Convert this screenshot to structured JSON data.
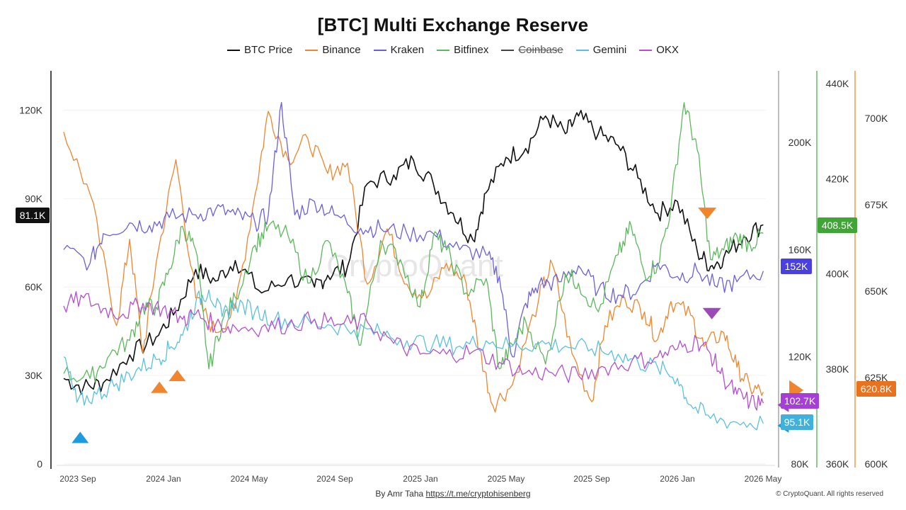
{
  "chart_data": {
    "type": "line",
    "title": "[BTC] Multi Exchange Reserve",
    "watermark": "CryptoQuant",
    "x_ticks": [
      "2023 Sep",
      "2024 Jan",
      "2024 May",
      "2024 Sep",
      "2025 Jan",
      "2025 May",
      "2025 Sep",
      "2026 Jan",
      "2026 May"
    ],
    "axes": {
      "price": {
        "ticks": [
          "0",
          "30K",
          "60K",
          "90K",
          "120K"
        ],
        "range": [
          0,
          129000
        ],
        "current_label": "81.1K",
        "color": "#111111"
      },
      "kraken": {
        "ticks": [
          "80K",
          "120K",
          "160K",
          "200K"
        ],
        "range": [
          80000,
          222000
        ],
        "color": "#999999"
      },
      "bitfinex": {
        "ticks": [
          "360K",
          "380K",
          "400K",
          "420K",
          "440K"
        ],
        "range": [
          360000,
          440000
        ],
        "current_label": "408.5K",
        "color": "#4caf50"
      },
      "binance": {
        "ticks": [
          "600K",
          "625K",
          "650K",
          "675K",
          "700K"
        ],
        "range": [
          600000,
          710000
        ],
        "current_label": "620.8K",
        "color": "#f0852d"
      }
    },
    "side_labels": [
      {
        "text": "152K",
        "color": "#4a3fe0"
      },
      {
        "text": "102.7K",
        "color": "#a53fd8"
      },
      {
        "text": "95.1K",
        "color": "#3fb1dc"
      }
    ],
    "series": [
      {
        "name": "BTC Price",
        "color": "#111111",
        "visible": true,
        "axis": "price",
        "points": [
          [
            0,
            29000
          ],
          [
            0.03,
            26000
          ],
          [
            0.06,
            27500
          ],
          [
            0.1,
            37000
          ],
          [
            0.14,
            43000
          ],
          [
            0.17,
            52000
          ],
          [
            0.2,
            66000
          ],
          [
            0.23,
            62000
          ],
          [
            0.26,
            69000
          ],
          [
            0.3,
            58000
          ],
          [
            0.34,
            63000
          ],
          [
            0.38,
            60000
          ],
          [
            0.4,
            64000
          ],
          [
            0.43,
            67000
          ],
          [
            0.46,
            95000
          ],
          [
            0.5,
            98000
          ],
          [
            0.53,
            103000
          ],
          [
            0.56,
            95000
          ],
          [
            0.59,
            85000
          ],
          [
            0.62,
            76000
          ],
          [
            0.64,
            92000
          ],
          [
            0.67,
            104000
          ],
          [
            0.7,
            107000
          ],
          [
            0.73,
            118000
          ],
          [
            0.76,
            112000
          ],
          [
            0.78,
            118000
          ],
          [
            0.81,
            112000
          ],
          [
            0.84,
            108000
          ],
          [
            0.87,
            97000
          ],
          [
            0.9,
            85000
          ],
          [
            0.93,
            89000
          ],
          [
            0.96,
            72000
          ],
          [
            0.98,
            67000
          ],
          [
            1.0,
            70000
          ],
          [
            1.03,
            77000
          ],
          [
            1.06,
            81100
          ]
        ]
      },
      {
        "name": "Binance",
        "color": "#f0852d",
        "visible": true,
        "axis": "binance",
        "points": [
          [
            0,
            696000
          ],
          [
            0.04,
            678000
          ],
          [
            0.08,
            640000
          ],
          [
            0.1,
            665000
          ],
          [
            0.12,
            632000
          ],
          [
            0.14,
            658000
          ],
          [
            0.17,
            688000
          ],
          [
            0.2,
            648000
          ],
          [
            0.23,
            638000
          ],
          [
            0.26,
            645000
          ],
          [
            0.29,
            678000
          ],
          [
            0.31,
            702000
          ],
          [
            0.34,
            688000
          ],
          [
            0.37,
            694000
          ],
          [
            0.4,
            684000
          ],
          [
            0.43,
            687000
          ],
          [
            0.46,
            652000
          ],
          [
            0.49,
            668000
          ],
          [
            0.52,
            652000
          ],
          [
            0.55,
            648000
          ],
          [
            0.58,
            658000
          ],
          [
            0.61,
            652000
          ],
          [
            0.63,
            633000
          ],
          [
            0.65,
            617000
          ],
          [
            0.68,
            623000
          ],
          [
            0.72,
            648000
          ],
          [
            0.74,
            658000
          ],
          [
            0.77,
            632000
          ],
          [
            0.8,
            618000
          ],
          [
            0.82,
            640000
          ],
          [
            0.85,
            648000
          ],
          [
            0.88,
            644000
          ],
          [
            0.9,
            636000
          ],
          [
            0.92,
            647000
          ],
          [
            0.95,
            643000
          ],
          [
            0.97,
            634000
          ],
          [
            1.0,
            638000
          ],
          [
            1.02,
            628000
          ],
          [
            1.04,
            622000
          ],
          [
            1.06,
            620800
          ]
        ]
      },
      {
        "name": "Kraken",
        "color": "#6b5fe0",
        "visible": true,
        "axis": "kraken",
        "points": [
          [
            0,
            160000
          ],
          [
            0.04,
            155000
          ],
          [
            0.06,
            166000
          ],
          [
            0.1,
            170000
          ],
          [
            0.13,
            169000
          ],
          [
            0.16,
            172000
          ],
          [
            0.2,
            173000
          ],
          [
            0.23,
            175000
          ],
          [
            0.26,
            173000
          ],
          [
            0.29,
            170000
          ],
          [
            0.31,
            173000
          ],
          [
            0.33,
            215000
          ],
          [
            0.35,
            173000
          ],
          [
            0.38,
            178000
          ],
          [
            0.41,
            173000
          ],
          [
            0.45,
            168000
          ],
          [
            0.48,
            168000
          ],
          [
            0.52,
            166000
          ],
          [
            0.56,
            166000
          ],
          [
            0.6,
            160000
          ],
          [
            0.64,
            158000
          ],
          [
            0.66,
            150000
          ],
          [
            0.68,
            120000
          ],
          [
            0.7,
            140000
          ],
          [
            0.72,
            147000
          ],
          [
            0.75,
            148000
          ],
          [
            0.78,
            154000
          ],
          [
            0.81,
            145000
          ],
          [
            0.84,
            143000
          ],
          [
            0.87,
            145000
          ],
          [
            0.9,
            155000
          ],
          [
            0.93,
            150000
          ],
          [
            0.96,
            152000
          ],
          [
            0.99,
            146000
          ],
          [
            1.02,
            148000
          ],
          [
            1.06,
            152000
          ]
        ]
      },
      {
        "name": "Bitfinex",
        "color": "#5cb85c",
        "visible": true,
        "axis": "bitfinex",
        "points": [
          [
            0,
            379000
          ],
          [
            0.04,
            378000
          ],
          [
            0.07,
            383000
          ],
          [
            0.1,
            386000
          ],
          [
            0.12,
            393000
          ],
          [
            0.14,
            393000
          ],
          [
            0.16,
            401000
          ],
          [
            0.18,
            410000
          ],
          [
            0.2,
            405000
          ],
          [
            0.22,
            380000
          ],
          [
            0.24,
            390000
          ],
          [
            0.26,
            395000
          ],
          [
            0.29,
            406000
          ],
          [
            0.31,
            410000
          ],
          [
            0.34,
            408000
          ],
          [
            0.37,
            398000
          ],
          [
            0.4,
            407000
          ],
          [
            0.43,
            396000
          ],
          [
            0.45,
            385000
          ],
          [
            0.48,
            407000
          ],
          [
            0.51,
            403000
          ],
          [
            0.54,
            393000
          ],
          [
            0.56,
            408000
          ],
          [
            0.58,
            405000
          ],
          [
            0.61,
            396000
          ],
          [
            0.64,
            399000
          ],
          [
            0.66,
            380000
          ],
          [
            0.68,
            385000
          ],
          [
            0.7,
            390000
          ],
          [
            0.73,
            381000
          ],
          [
            0.76,
            400000
          ],
          [
            0.78,
            398000
          ],
          [
            0.81,
            392000
          ],
          [
            0.84,
            404000
          ],
          [
            0.86,
            410000
          ],
          [
            0.88,
            400000
          ],
          [
            0.9,
            402000
          ],
          [
            0.92,
            414000
          ],
          [
            0.94,
            436000
          ],
          [
            0.96,
            426000
          ],
          [
            0.98,
            403000
          ],
          [
            1.0,
            405000
          ],
          [
            1.02,
            408000
          ],
          [
            1.04,
            406000
          ],
          [
            1.06,
            408500
          ]
        ]
      },
      {
        "name": "Coinbase",
        "color": "#444444",
        "visible": false,
        "axis": "price",
        "points": []
      },
      {
        "name": "Gemini",
        "color": "#5bc0de",
        "visible": true,
        "axis": "kraken",
        "points": [
          [
            0,
            120000
          ],
          [
            0.02,
            103000
          ],
          [
            0.05,
            106000
          ],
          [
            0.08,
            110000
          ],
          [
            0.11,
            115000
          ],
          [
            0.14,
            119000
          ],
          [
            0.16,
            123000
          ],
          [
            0.18,
            128000
          ],
          [
            0.2,
            140000
          ],
          [
            0.22,
            145000
          ],
          [
            0.24,
            135000
          ],
          [
            0.26,
            140000
          ],
          [
            0.29,
            137000
          ],
          [
            0.32,
            134000
          ],
          [
            0.36,
            133000
          ],
          [
            0.4,
            132000
          ],
          [
            0.44,
            130000
          ],
          [
            0.48,
            129000
          ],
          [
            0.52,
            126000
          ],
          [
            0.56,
            125000
          ],
          [
            0.6,
            124000
          ],
          [
            0.64,
            126000
          ],
          [
            0.68,
            124000
          ],
          [
            0.72,
            125000
          ],
          [
            0.76,
            124000
          ],
          [
            0.8,
            123000
          ],
          [
            0.84,
            121000
          ],
          [
            0.87,
            118000
          ],
          [
            0.9,
            116000
          ],
          [
            0.93,
            112000
          ],
          [
            0.95,
            102000
          ],
          [
            0.98,
            97000
          ],
          [
            1.02,
            95500
          ],
          [
            1.06,
            95100
          ]
        ]
      },
      {
        "name": "OKX",
        "color": "#b44fd0",
        "visible": true,
        "axis": "kraken",
        "points": [
          [
            0,
            139000
          ],
          [
            0.03,
            142000
          ],
          [
            0.06,
            138000
          ],
          [
            0.09,
            136000
          ],
          [
            0.12,
            140000
          ],
          [
            0.15,
            138000
          ],
          [
            0.18,
            134000
          ],
          [
            0.2,
            136000
          ],
          [
            0.23,
            132000
          ],
          [
            0.26,
            131000
          ],
          [
            0.3,
            131000
          ],
          [
            0.34,
            132000
          ],
          [
            0.38,
            134000
          ],
          [
            0.42,
            132000
          ],
          [
            0.46,
            133000
          ],
          [
            0.5,
            125000
          ],
          [
            0.54,
            121000
          ],
          [
            0.58,
            121000
          ],
          [
            0.62,
            122000
          ],
          [
            0.66,
            118000
          ],
          [
            0.7,
            114000
          ],
          [
            0.74,
            114000
          ],
          [
            0.78,
            113000
          ],
          [
            0.82,
            116000
          ],
          [
            0.86,
            118000
          ],
          [
            0.9,
            120000
          ],
          [
            0.93,
            123000
          ],
          [
            0.96,
            126000
          ],
          [
            0.98,
            121000
          ],
          [
            1.0,
            112000
          ],
          [
            1.02,
            106000
          ],
          [
            1.04,
            103000
          ],
          [
            1.06,
            102700
          ]
        ]
      }
    ],
    "markers": [
      {
        "shape": "up",
        "color": "#1e9bdc",
        "x": 0.025,
        "value": 9000,
        "axis": "price"
      },
      {
        "shape": "up",
        "color": "#f0852d",
        "x": 0.145,
        "value": 26000,
        "axis": "price"
      },
      {
        "shape": "up",
        "color": "#f0852d",
        "x": 0.172,
        "value": 30000,
        "axis": "price"
      },
      {
        "shape": "down",
        "color": "#f0852d",
        "x": 0.975,
        "value": 85000,
        "axis": "price"
      },
      {
        "shape": "down",
        "color": "#9b4bb8",
        "x": 0.982,
        "value": 51000,
        "axis": "price"
      },
      {
        "shape": "left",
        "color": "#9b4bb8",
        "x": 1.09,
        "value": 20000,
        "axis": "price"
      },
      {
        "shape": "left",
        "color": "#1e9bdc",
        "x": 1.09,
        "value": 13000,
        "axis": "price"
      },
      {
        "shape": "right",
        "color": "#f0852d",
        "x": 1.11,
        "value": 25000,
        "axis": "price"
      }
    ]
  },
  "footer": {
    "credit_prefix": "By Amr Taha",
    "credit_link": "https://t.me/cryptohisenberg",
    "copyright": "© CryptoQuant. All rights reserved"
  }
}
